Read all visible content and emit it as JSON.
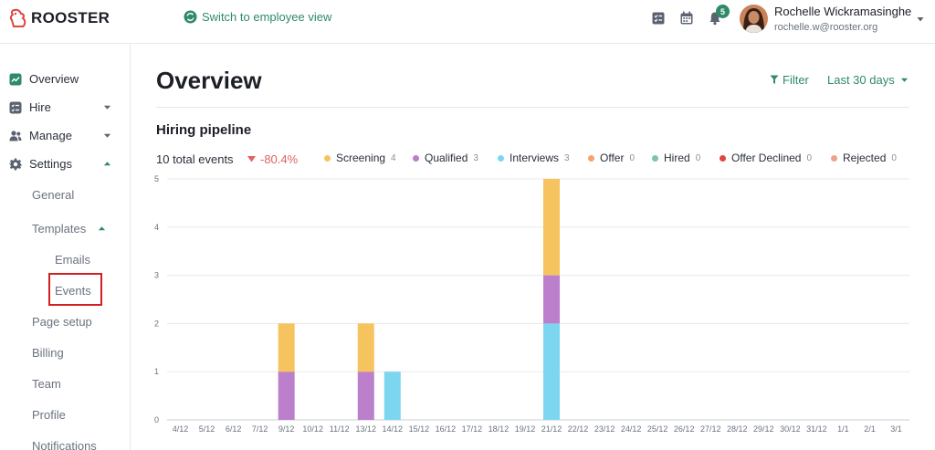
{
  "brand": {
    "name": "ROOSTER"
  },
  "header": {
    "switch_view": "Switch to employee view",
    "notification_count": "5",
    "user_name": "Rochelle Wickramasinghe",
    "user_email": "rochelle.w@rooster.org"
  },
  "sidebar": {
    "items": [
      {
        "label": "Overview",
        "icon": "overview-icon"
      },
      {
        "label": "Hire",
        "icon": "hire-icon"
      },
      {
        "label": "Manage",
        "icon": "users-icon"
      },
      {
        "label": "Settings",
        "icon": "gear-icon"
      }
    ],
    "settings_sub": {
      "general": "General",
      "templates": "Templates",
      "emails": "Emails",
      "events": "Events",
      "page_setup": "Page setup",
      "billing": "Billing",
      "team": "Team",
      "profile": "Profile",
      "notifications": "Notifications"
    }
  },
  "main": {
    "title": "Overview",
    "filter_label": "Filter",
    "range_label": "Last 30 days",
    "section_title": "Hiring pipeline",
    "total_events": "10 total events",
    "change": "-80.4%"
  },
  "legend": [
    {
      "name": "Screening",
      "count": "4",
      "color": "#f5c45e"
    },
    {
      "name": "Qualified",
      "count": "3",
      "color": "#bb7fcc"
    },
    {
      "name": "Interviews",
      "count": "3",
      "color": "#7dd6f0"
    },
    {
      "name": "Offer",
      "count": "0",
      "color": "#f5a36b"
    },
    {
      "name": "Hired",
      "count": "0",
      "color": "#7fc3a8"
    },
    {
      "name": "Offer Declined",
      "count": "0",
      "color": "#e0453e"
    },
    {
      "name": "Rejected",
      "count": "0",
      "color": "#f0a08e"
    }
  ],
  "colors": {
    "accent": "#2f8a68",
    "negative": "#e06262",
    "highlight_box": "#d21f1f"
  },
  "chart_data": {
    "type": "bar",
    "stacked": true,
    "categories": [
      "4/12",
      "5/12",
      "6/12",
      "7/12",
      "9/12",
      "10/12",
      "11/12",
      "13/12",
      "14/12",
      "15/12",
      "16/12",
      "17/12",
      "18/12",
      "19/12",
      "21/12",
      "22/12",
      "23/12",
      "24/12",
      "25/12",
      "26/12",
      "27/12",
      "28/12",
      "29/12",
      "30/12",
      "31/12",
      "1/1",
      "2/1",
      "3/1"
    ],
    "series": [
      {
        "name": "Interviews",
        "color": "#7dd6f0",
        "values": [
          0,
          0,
          0,
          0,
          0,
          0,
          0,
          0,
          1,
          0,
          0,
          0,
          0,
          0,
          2,
          0,
          0,
          0,
          0,
          0,
          0,
          0,
          0,
          0,
          0,
          0,
          0,
          0
        ]
      },
      {
        "name": "Qualified",
        "color": "#bb7fcc",
        "values": [
          0,
          0,
          0,
          0,
          1,
          0,
          0,
          1,
          0,
          0,
          0,
          0,
          0,
          0,
          1,
          0,
          0,
          0,
          0,
          0,
          0,
          0,
          0,
          0,
          0,
          0,
          0,
          0
        ]
      },
      {
        "name": "Screening",
        "color": "#f5c45e",
        "values": [
          0,
          0,
          0,
          0,
          1,
          0,
          0,
          1,
          0,
          0,
          0,
          0,
          0,
          0,
          2,
          0,
          0,
          0,
          0,
          0,
          0,
          0,
          0,
          0,
          0,
          0,
          0,
          0
        ]
      }
    ],
    "yticks": [
      "0",
      "1",
      "2",
      "3",
      "4",
      "5"
    ],
    "ylim": [
      0,
      5
    ],
    "grid": true
  }
}
